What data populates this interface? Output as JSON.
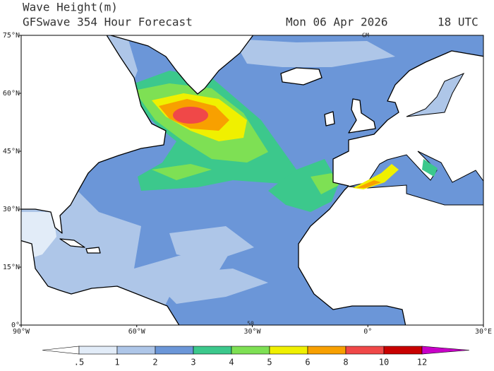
{
  "header": {
    "title": "Wave Height(m)",
    "subtitle": "GFSwave 354 Hour Forecast",
    "date": "Mon 06 Apr 2026",
    "time": "18 UTC"
  },
  "map": {
    "lon_ticks": [
      {
        "value": -90,
        "label": "90°W"
      },
      {
        "value": -60,
        "label": "60°W"
      },
      {
        "value": -30,
        "label": "30°W"
      },
      {
        "value": 0,
        "label": "0°"
      },
      {
        "value": 30,
        "label": "30°E"
      }
    ],
    "lat_ticks": [
      {
        "value": 75,
        "label": "75°N"
      },
      {
        "value": 60,
        "label": "60°N"
      },
      {
        "value": 45,
        "label": "45°N"
      },
      {
        "value": 30,
        "label": "30°N"
      },
      {
        "value": 15,
        "label": "15°N"
      },
      {
        "value": 0,
        "label": "0°"
      }
    ],
    "annotations": [
      "GM",
      "50"
    ]
  },
  "colorbar": {
    "levels": [
      {
        "value": 0.5,
        "label": ".5"
      },
      1,
      2,
      3,
      4,
      5,
      6,
      8,
      10,
      12
    ],
    "colors": [
      "#ffffff",
      "#e2ecf8",
      "#aec6e8",
      "#6b96d8",
      "#3cc88c",
      "#7ee054",
      "#f0f000",
      "#f8a000",
      "#f04848",
      "#c80000",
      "#c800c8"
    ]
  }
}
